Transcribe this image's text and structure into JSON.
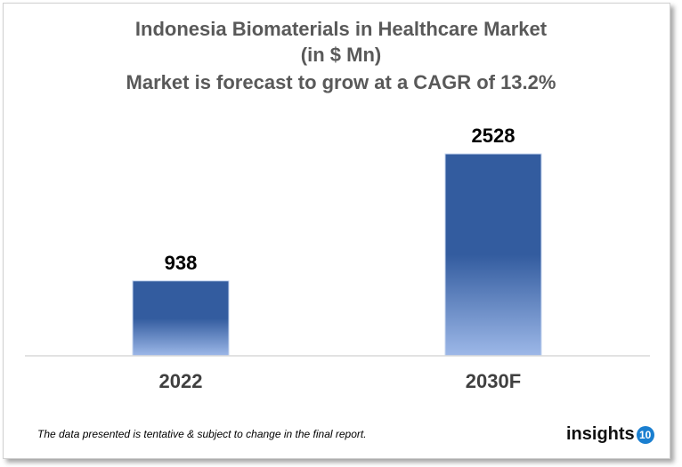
{
  "chart_data": {
    "type": "bar",
    "title": [
      "Indonesia Biomaterials in Healthcare Market",
      "(in $ Mn)",
      "Market is forecast to grow at a CAGR of 13.2%"
    ],
    "categories": [
      "2022",
      "2030F"
    ],
    "values": [
      938,
      2528
    ],
    "data_labels": [
      "938",
      "2528"
    ],
    "ylim": [
      0,
      2528
    ],
    "grid": false,
    "legend": "none",
    "bar_color_top": "#335c9f",
    "bar_color_bottom": "#9db8e8"
  },
  "footer": "The data presented is tentative & subject to change in the final report.",
  "logo": {
    "text": "insights",
    "badge": "10"
  }
}
